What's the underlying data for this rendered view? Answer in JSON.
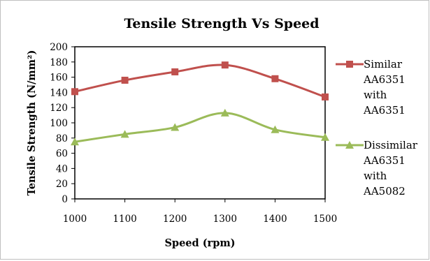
{
  "chart_data": {
    "type": "line",
    "title": "Tensile Strength Vs Speed",
    "xlabel": "Speed (rpm)",
    "ylabel": "Tensile Strength (N/mm²)",
    "x": [
      1000,
      1100,
      1200,
      1300,
      1400,
      1500
    ],
    "xlim": [
      1000,
      1500
    ],
    "ylim": [
      0,
      200
    ],
    "yticks": [
      0,
      20,
      40,
      60,
      80,
      100,
      120,
      140,
      160,
      180,
      200
    ],
    "grid": false,
    "legend_position": "right",
    "series": [
      {
        "name": "Similar AA6351 with AA6351",
        "legend_lines": [
          "Similar",
          "AA6351",
          "with",
          "AA6351"
        ],
        "values": [
          141,
          156,
          167,
          176,
          158,
          134
        ],
        "color": "#c0504d",
        "marker": "square"
      },
      {
        "name": "Dissimilar AA6351 with AA5082",
        "legend_lines": [
          "Dissimilar",
          "AA6351",
          "with",
          "AA5082"
        ],
        "values": [
          75,
          85,
          94,
          113,
          91,
          81
        ],
        "color": "#9bbb59",
        "marker": "triangle"
      }
    ]
  }
}
